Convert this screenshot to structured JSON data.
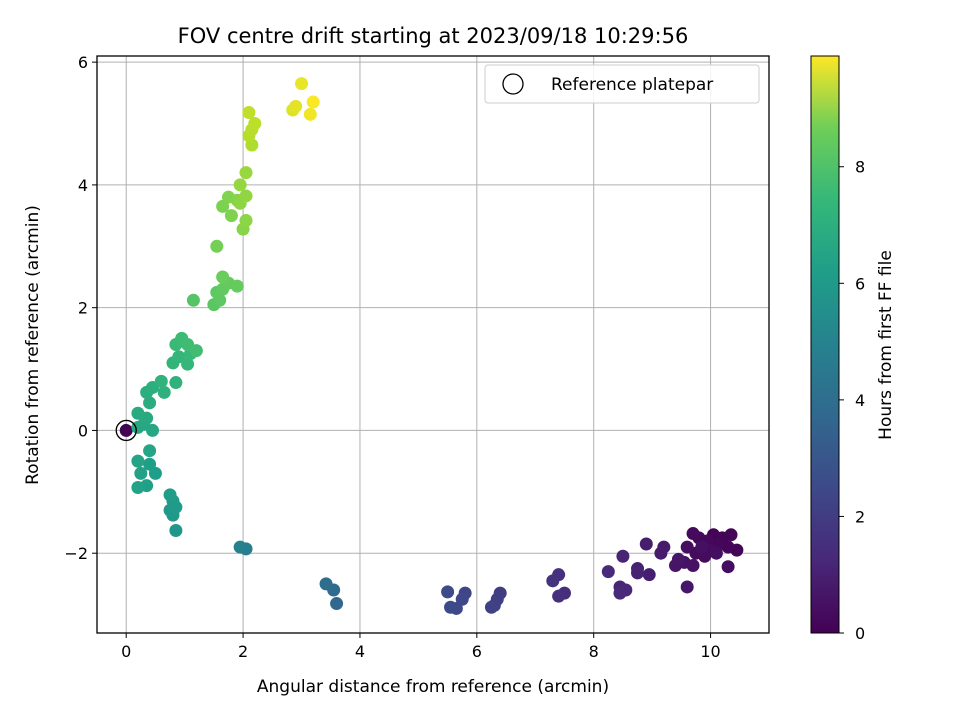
{
  "chart_data": {
    "type": "scatter",
    "title": "FOV centre drift starting at 2023/09/18 10:29:56",
    "xlabel": "Angular distance from reference (arcmin)",
    "ylabel": "Rotation from reference (arcmin)",
    "xlim": [
      -0.5,
      11.0
    ],
    "ylim": [
      -3.3,
      6.1
    ],
    "xticks": [
      0,
      2,
      4,
      6,
      8,
      10
    ],
    "yticks": [
      -2,
      0,
      2,
      4,
      6
    ],
    "grid": true,
    "legend": {
      "position": "top-right",
      "entries": [
        "Reference platepar"
      ]
    },
    "reference_point": {
      "x": 0.0,
      "y": 0.0
    },
    "colorbar": {
      "label": "Hours from first FF file",
      "colormap": "viridis",
      "range": [
        0,
        9.9
      ],
      "ticks": [
        0,
        2,
        4,
        6,
        8
      ]
    },
    "points": [
      {
        "x": 0.0,
        "y": 0.0,
        "c": 0.0
      },
      {
        "x": 10.05,
        "y": -1.7,
        "c": 0.05
      },
      {
        "x": 10.2,
        "y": -1.75,
        "c": 0.08
      },
      {
        "x": 10.35,
        "y": -1.7,
        "c": 0.1
      },
      {
        "x": 10.45,
        "y": -1.95,
        "c": 0.12
      },
      {
        "x": 10.3,
        "y": -1.9,
        "c": 0.15
      },
      {
        "x": 10.15,
        "y": -1.85,
        "c": 0.18
      },
      {
        "x": 9.95,
        "y": -1.8,
        "c": 0.2
      },
      {
        "x": 9.8,
        "y": -1.75,
        "c": 0.22
      },
      {
        "x": 9.7,
        "y": -1.68,
        "c": 0.25
      },
      {
        "x": 10.0,
        "y": -1.95,
        "c": 0.28
      },
      {
        "x": 9.9,
        "y": -2.05,
        "c": 0.3
      },
      {
        "x": 9.75,
        "y": -2.0,
        "c": 0.32
      },
      {
        "x": 10.3,
        "y": -2.22,
        "c": 0.35
      },
      {
        "x": 9.6,
        "y": -1.9,
        "c": 0.38
      },
      {
        "x": 10.1,
        "y": -2.0,
        "c": 0.4
      },
      {
        "x": 9.85,
        "y": -1.9,
        "c": 0.42
      },
      {
        "x": 9.7,
        "y": -2.2,
        "c": 0.45
      },
      {
        "x": 9.55,
        "y": -2.15,
        "c": 0.5
      },
      {
        "x": 9.4,
        "y": -2.2,
        "c": 0.55
      },
      {
        "x": 9.45,
        "y": -2.1,
        "c": 0.6
      },
      {
        "x": 9.6,
        "y": -2.55,
        "c": 0.62
      },
      {
        "x": 9.2,
        "y": -1.9,
        "c": 0.7
      },
      {
        "x": 9.15,
        "y": -2.0,
        "c": 0.75
      },
      {
        "x": 8.9,
        "y": -1.85,
        "c": 0.8
      },
      {
        "x": 8.95,
        "y": -2.35,
        "c": 0.85
      },
      {
        "x": 8.75,
        "y": -2.25,
        "c": 0.9
      },
      {
        "x": 8.75,
        "y": -2.32,
        "c": 0.95
      },
      {
        "x": 8.5,
        "y": -2.05,
        "c": 1.0
      },
      {
        "x": 8.45,
        "y": -2.55,
        "c": 1.05
      },
      {
        "x": 8.55,
        "y": -2.6,
        "c": 1.1
      },
      {
        "x": 8.45,
        "y": -2.65,
        "c": 1.15
      },
      {
        "x": 8.25,
        "y": -2.3,
        "c": 1.2
      },
      {
        "x": 7.5,
        "y": -2.65,
        "c": 1.3
      },
      {
        "x": 7.4,
        "y": -2.7,
        "c": 1.35
      },
      {
        "x": 7.4,
        "y": -2.35,
        "c": 1.4
      },
      {
        "x": 7.3,
        "y": -2.45,
        "c": 1.45
      },
      {
        "x": 6.4,
        "y": -2.65,
        "c": 1.8
      },
      {
        "x": 6.35,
        "y": -2.75,
        "c": 1.85
      },
      {
        "x": 6.3,
        "y": -2.85,
        "c": 1.9
      },
      {
        "x": 6.25,
        "y": -2.88,
        "c": 1.95
      },
      {
        "x": 5.8,
        "y": -2.65,
        "c": 2.1
      },
      {
        "x": 5.75,
        "y": -2.75,
        "c": 2.15
      },
      {
        "x": 5.65,
        "y": -2.9,
        "c": 2.2
      },
      {
        "x": 5.55,
        "y": -2.88,
        "c": 2.25
      },
      {
        "x": 5.5,
        "y": -2.63,
        "c": 2.3
      },
      {
        "x": 3.6,
        "y": -2.82,
        "c": 3.3
      },
      {
        "x": 3.55,
        "y": -2.6,
        "c": 3.4
      },
      {
        "x": 3.42,
        "y": -2.5,
        "c": 3.5
      },
      {
        "x": 2.05,
        "y": -1.93,
        "c": 4.2
      },
      {
        "x": 1.95,
        "y": -1.9,
        "c": 4.3
      },
      {
        "x": 0.85,
        "y": -1.63,
        "c": 5.2
      },
      {
        "x": 0.8,
        "y": -1.38,
        "c": 5.25
      },
      {
        "x": 0.75,
        "y": -1.3,
        "c": 5.3
      },
      {
        "x": 0.85,
        "y": -1.25,
        "c": 5.35
      },
      {
        "x": 0.8,
        "y": -1.15,
        "c": 5.4
      },
      {
        "x": 0.75,
        "y": -1.05,
        "c": 5.45
      },
      {
        "x": 0.5,
        "y": -0.7,
        "c": 5.5
      },
      {
        "x": 0.4,
        "y": -0.55,
        "c": 5.55
      },
      {
        "x": 0.35,
        "y": -0.9,
        "c": 5.6
      },
      {
        "x": 0.25,
        "y": -0.7,
        "c": 5.65
      },
      {
        "x": 0.2,
        "y": -0.93,
        "c": 5.7
      },
      {
        "x": 0.2,
        "y": -0.5,
        "c": 5.75
      },
      {
        "x": 0.4,
        "y": -0.33,
        "c": 5.8
      },
      {
        "x": 0.45,
        "y": 0.0,
        "c": 5.85
      },
      {
        "x": 0.3,
        "y": 0.1,
        "c": 5.9
      },
      {
        "x": 0.2,
        "y": 0.05,
        "c": 5.95
      },
      {
        "x": 0.35,
        "y": 0.2,
        "c": 6.0
      },
      {
        "x": 0.2,
        "y": 0.28,
        "c": 6.05
      },
      {
        "x": 0.4,
        "y": 0.45,
        "c": 6.1
      },
      {
        "x": 0.35,
        "y": 0.62,
        "c": 6.15
      },
      {
        "x": 0.45,
        "y": 0.7,
        "c": 6.2
      },
      {
        "x": 0.65,
        "y": 0.62,
        "c": 6.3
      },
      {
        "x": 0.6,
        "y": 0.8,
        "c": 6.35
      },
      {
        "x": 0.85,
        "y": 0.78,
        "c": 6.4
      },
      {
        "x": 0.8,
        "y": 1.1,
        "c": 6.5
      },
      {
        "x": 0.9,
        "y": 1.2,
        "c": 6.55
      },
      {
        "x": 1.05,
        "y": 1.08,
        "c": 6.6
      },
      {
        "x": 1.1,
        "y": 1.25,
        "c": 6.65
      },
      {
        "x": 0.85,
        "y": 1.4,
        "c": 6.7
      },
      {
        "x": 0.95,
        "y": 1.5,
        "c": 6.75
      },
      {
        "x": 1.05,
        "y": 1.4,
        "c": 6.8
      },
      {
        "x": 1.2,
        "y": 1.3,
        "c": 6.85
      },
      {
        "x": 1.15,
        "y": 2.12,
        "c": 7.2
      },
      {
        "x": 1.5,
        "y": 2.05,
        "c": 7.3
      },
      {
        "x": 1.6,
        "y": 2.12,
        "c": 7.35
      },
      {
        "x": 1.55,
        "y": 2.25,
        "c": 7.4
      },
      {
        "x": 1.65,
        "y": 2.3,
        "c": 7.45
      },
      {
        "x": 1.75,
        "y": 2.4,
        "c": 7.5
      },
      {
        "x": 1.9,
        "y": 2.35,
        "c": 7.55
      },
      {
        "x": 1.65,
        "y": 2.5,
        "c": 7.6
      },
      {
        "x": 1.55,
        "y": 3.0,
        "c": 7.8
      },
      {
        "x": 1.65,
        "y": 3.65,
        "c": 7.9
      },
      {
        "x": 1.8,
        "y": 3.5,
        "c": 7.95
      },
      {
        "x": 1.75,
        "y": 3.8,
        "c": 8.0
      },
      {
        "x": 1.9,
        "y": 3.75,
        "c": 8.05
      },
      {
        "x": 2.0,
        "y": 3.28,
        "c": 8.1
      },
      {
        "x": 2.05,
        "y": 3.42,
        "c": 8.15
      },
      {
        "x": 1.95,
        "y": 3.7,
        "c": 8.2
      },
      {
        "x": 2.05,
        "y": 3.82,
        "c": 8.25
      },
      {
        "x": 1.95,
        "y": 4.0,
        "c": 8.3
      },
      {
        "x": 2.05,
        "y": 4.2,
        "c": 8.35
      },
      {
        "x": 2.15,
        "y": 4.65,
        "c": 8.7
      },
      {
        "x": 2.1,
        "y": 4.8,
        "c": 8.8
      },
      {
        "x": 2.15,
        "y": 4.9,
        "c": 8.85
      },
      {
        "x": 2.2,
        "y": 5.0,
        "c": 8.9
      },
      {
        "x": 2.1,
        "y": 5.18,
        "c": 8.95
      },
      {
        "x": 2.85,
        "y": 5.22,
        "c": 9.4
      },
      {
        "x": 2.9,
        "y": 5.28,
        "c": 9.5
      },
      {
        "x": 3.0,
        "y": 5.65,
        "c": 9.6
      },
      {
        "x": 3.15,
        "y": 5.15,
        "c": 9.7
      },
      {
        "x": 3.2,
        "y": 5.35,
        "c": 9.85
      }
    ]
  }
}
